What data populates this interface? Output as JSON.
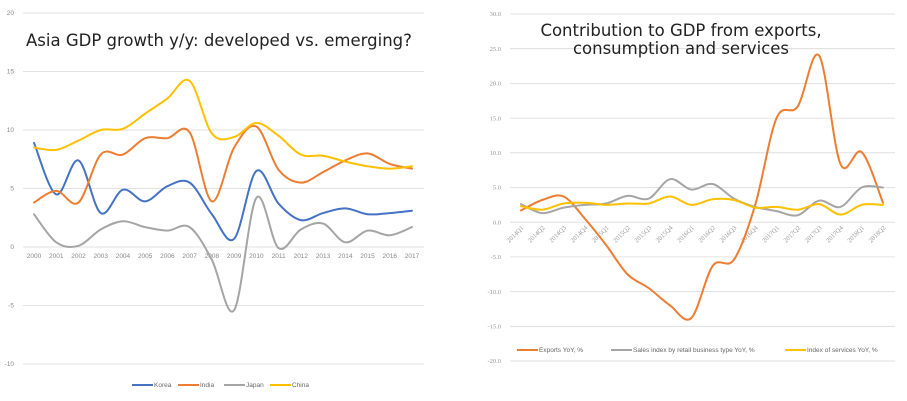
{
  "chart_data": [
    {
      "type": "line",
      "title": "Asia GDP growth y/y: developed vs. emerging?",
      "xlabel": "",
      "ylabel": "",
      "ylim": [
        -10,
        20
      ],
      "yticks": [
        20,
        15,
        10,
        5,
        0,
        -5,
        -10
      ],
      "ytick_labels": [
        "20",
        "15",
        "10",
        "5",
        "0",
        "-5",
        "-10"
      ],
      "grid": true,
      "legend_position": "bottom",
      "categories": [
        "2000",
        "2001",
        "2002",
        "2003",
        "2004",
        "2005",
        "2006",
        "2007",
        "2008",
        "2009",
        "2010",
        "2011",
        "2012",
        "2013",
        "2014",
        "2015",
        "2016",
        "2017"
      ],
      "series": [
        {
          "name": "Korea",
          "color": "#4472C4",
          "values": [
            8.9,
            4.5,
            7.4,
            2.9,
            4.9,
            3.9,
            5.2,
            5.5,
            2.8,
            0.7,
            6.5,
            3.7,
            2.3,
            2.9,
            3.3,
            2.8,
            2.9,
            3.1
          ]
        },
        {
          "name": "India",
          "color": "#ED7D31",
          "values": [
            3.8,
            4.8,
            3.8,
            7.9,
            7.9,
            9.3,
            9.3,
            9.8,
            3.9,
            8.5,
            10.3,
            6.6,
            5.5,
            6.4,
            7.4,
            8.0,
            7.1,
            6.7
          ]
        },
        {
          "name": "Japan",
          "color": "#A5A5A5",
          "values": [
            2.8,
            0.4,
            0.1,
            1.5,
            2.2,
            1.7,
            1.4,
            1.7,
            -1.1,
            -5.4,
            4.2,
            -0.1,
            1.5,
            2.0,
            0.4,
            1.4,
            1.0,
            1.7
          ]
        },
        {
          "name": "China",
          "color": "#FFC000",
          "values": [
            8.5,
            8.3,
            9.1,
            10.0,
            10.1,
            11.4,
            12.7,
            14.2,
            9.7,
            9.4,
            10.6,
            9.5,
            7.9,
            7.8,
            7.3,
            6.9,
            6.7,
            6.9
          ]
        }
      ]
    },
    {
      "type": "line",
      "title": "Contribution to GDP from exports, consumption and services",
      "xlabel": "",
      "ylabel": "",
      "ylim": [
        -20,
        30
      ],
      "yticks": [
        30,
        25,
        20,
        15,
        10,
        5,
        0,
        -5,
        -10,
        -15,
        -20
      ],
      "ytick_labels": [
        "30.0",
        "25.0",
        "20.0",
        "15.0",
        "10.0",
        "5.0",
        "0.0",
        "-5.0",
        "-10.0",
        "-15.0",
        "-20.0"
      ],
      "grid": true,
      "legend_position": "bottom",
      "categories": [
        "2014Q1",
        "2014Q2",
        "2014Q3",
        "2014Q4",
        "2015Q1",
        "2015Q2",
        "2015Q3",
        "2015Q4",
        "2016Q1",
        "2016Q2",
        "2016Q3",
        "2016Q4",
        "2017Q1",
        "2017Q2",
        "2017Q3",
        "2017Q4",
        "2018Q1",
        "2018Q2"
      ],
      "series": [
        {
          "name": "Exports YoY, %",
          "color": "#ED7D31",
          "values": [
            1.7,
            3.2,
            3.7,
            0.5,
            -3.3,
            -7.5,
            -9.5,
            -12.0,
            -13.8,
            -6.3,
            -5.4,
            2.5,
            15.0,
            16.7,
            24.0,
            8.4,
            10.1,
            2.8
          ]
        },
        {
          "name": "Sales index by retail business type YoY, %",
          "color": "#A5A5A5",
          "values": [
            2.6,
            1.3,
            2.1,
            2.5,
            2.7,
            3.8,
            3.4,
            6.2,
            4.7,
            5.5,
            3.4,
            2.2,
            1.6,
            1.0,
            3.1,
            2.2,
            5.0,
            5.0
          ]
        },
        {
          "name": "Index of services YoY, %",
          "color": "#FFC000",
          "values": [
            2.3,
            1.8,
            2.7,
            2.8,
            2.5,
            2.7,
            2.7,
            3.7,
            2.5,
            3.3,
            3.2,
            2.1,
            2.2,
            1.8,
            2.6,
            1.1,
            2.5,
            2.5
          ]
        }
      ]
    }
  ]
}
